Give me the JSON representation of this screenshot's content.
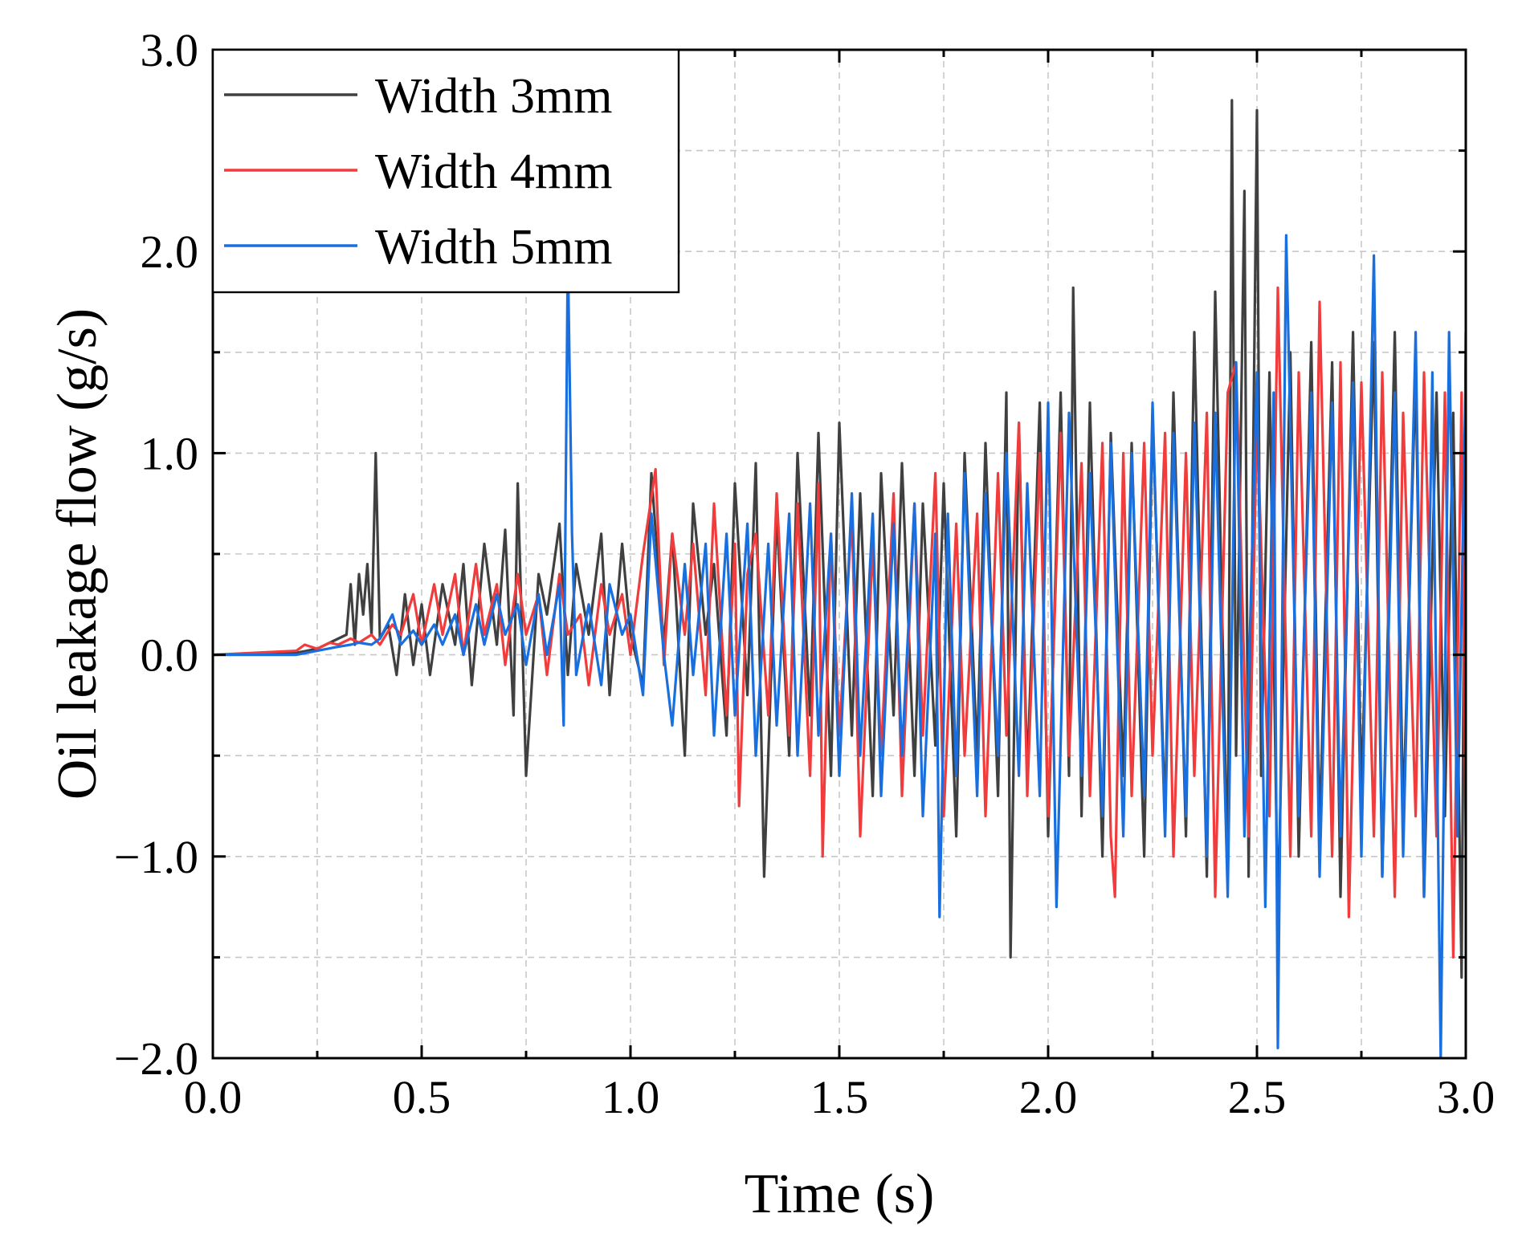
{
  "chart_data": {
    "type": "line",
    "xlabel": "Time (s)",
    "ylabel": "Oil leakage flow (g/s)",
    "xlim": [
      0,
      3.0
    ],
    "ylim": [
      -2.0,
      3.0
    ],
    "x_ticks": [
      "0.0",
      "0.5",
      "1.0",
      "1.5",
      "2.0",
      "2.5",
      "3.0"
    ],
    "y_ticks": [
      "−2.0",
      "−1.0",
      "0.0",
      "1.0",
      "2.0",
      "3.0"
    ],
    "x_tick_values": [
      0,
      0.5,
      1.0,
      1.5,
      2.0,
      2.5,
      3.0
    ],
    "y_tick_values": [
      -2.0,
      -1.0,
      0.0,
      1.0,
      2.0,
      3.0
    ],
    "grid": true,
    "legend_position": "top-left",
    "series": [
      {
        "name": "Width 3mm",
        "color": "#404040",
        "x": [
          0,
          0.2,
          0.25,
          0.3,
          0.32,
          0.33,
          0.34,
          0.35,
          0.36,
          0.37,
          0.38,
          0.39,
          0.4,
          0.42,
          0.44,
          0.46,
          0.48,
          0.5,
          0.52,
          0.55,
          0.58,
          0.6,
          0.62,
          0.65,
          0.68,
          0.7,
          0.72,
          0.73,
          0.75,
          0.78,
          0.8,
          0.83,
          0.85,
          0.87,
          0.9,
          0.93,
          0.95,
          0.98,
          1.0,
          1.03,
          1.05,
          1.08,
          1.1,
          1.13,
          1.15,
          1.18,
          1.2,
          1.23,
          1.25,
          1.28,
          1.3,
          1.32,
          1.35,
          1.38,
          1.4,
          1.43,
          1.45,
          1.48,
          1.5,
          1.53,
          1.55,
          1.58,
          1.6,
          1.63,
          1.65,
          1.68,
          1.7,
          1.73,
          1.75,
          1.78,
          1.8,
          1.83,
          1.85,
          1.88,
          1.9,
          1.91,
          1.93,
          1.95,
          1.98,
          2.0,
          2.03,
          2.05,
          2.06,
          2.08,
          2.1,
          2.13,
          2.15,
          2.18,
          2.2,
          2.23,
          2.25,
          2.28,
          2.3,
          2.33,
          2.35,
          2.38,
          2.4,
          2.43,
          2.44,
          2.45,
          2.47,
          2.48,
          2.5,
          2.51,
          2.53,
          2.55,
          2.58,
          2.6,
          2.63,
          2.65,
          2.68,
          2.7,
          2.73,
          2.75,
          2.78,
          2.8,
          2.83,
          2.85,
          2.88,
          2.9,
          2.93,
          2.95,
          2.97,
          2.99,
          3.0
        ],
        "values": [
          0,
          0.01,
          0.03,
          0.08,
          0.1,
          0.35,
          0.05,
          0.4,
          0.2,
          0.45,
          0.1,
          1.0,
          0.08,
          0.15,
          -0.1,
          0.3,
          -0.05,
          0.25,
          -0.1,
          0.35,
          0.05,
          0.45,
          -0.15,
          0.55,
          0.05,
          0.62,
          -0.3,
          0.85,
          -0.6,
          0.4,
          0.2,
          0.65,
          -0.1,
          0.45,
          0.1,
          0.6,
          -0.2,
          0.55,
          0.1,
          -0.15,
          0.9,
          0.05,
          0.6,
          -0.5,
          0.75,
          0.1,
          0.45,
          -0.4,
          0.85,
          -0.2,
          0.95,
          -1.1,
          0.7,
          -0.5,
          1.0,
          -0.3,
          1.1,
          -0.6,
          1.15,
          -0.4,
          0.8,
          -0.7,
          0.9,
          -0.3,
          0.95,
          -0.6,
          0.75,
          -0.45,
          0.85,
          -0.9,
          1.0,
          -0.5,
          1.05,
          -0.7,
          1.3,
          -1.5,
          1.15,
          -0.6,
          1.25,
          -0.9,
          1.3,
          -0.6,
          1.82,
          -0.8,
          1.25,
          -1.0,
          1.1,
          -0.6,
          1.05,
          -1.0,
          1.2,
          -0.8,
          1.3,
          -0.9,
          1.6,
          -1.1,
          1.8,
          -1.1,
          2.75,
          -0.5,
          2.3,
          -1.1,
          2.7,
          -0.6,
          1.4,
          -1.3,
          1.5,
          -1.0,
          1.55,
          -0.9,
          1.45,
          -1.2,
          1.6,
          -0.7,
          1.55,
          -1.1,
          1.6,
          -0.8,
          1.4,
          -1.2,
          1.3,
          -0.8,
          1.2,
          -1.6,
          1.6
        ]
      },
      {
        "name": "Width 4mm",
        "color": "#f03c3c",
        "x": [
          0,
          0.2,
          0.22,
          0.25,
          0.28,
          0.3,
          0.33,
          0.35,
          0.38,
          0.4,
          0.43,
          0.45,
          0.48,
          0.5,
          0.53,
          0.55,
          0.58,
          0.6,
          0.63,
          0.65,
          0.68,
          0.7,
          0.73,
          0.75,
          0.78,
          0.8,
          0.83,
          0.85,
          0.88,
          0.9,
          0.93,
          0.95,
          0.98,
          1.0,
          1.03,
          1.06,
          1.08,
          1.1,
          1.13,
          1.15,
          1.18,
          1.2,
          1.23,
          1.25,
          1.26,
          1.28,
          1.3,
          1.33,
          1.35,
          1.38,
          1.4,
          1.43,
          1.45,
          1.46,
          1.48,
          1.5,
          1.53,
          1.55,
          1.58,
          1.6,
          1.63,
          1.65,
          1.68,
          1.7,
          1.73,
          1.75,
          1.78,
          1.8,
          1.83,
          1.85,
          1.88,
          1.9,
          1.93,
          1.95,
          1.98,
          2.0,
          2.03,
          2.05,
          2.08,
          2.1,
          2.13,
          2.15,
          2.16,
          2.18,
          2.2,
          2.23,
          2.25,
          2.28,
          2.3,
          2.33,
          2.35,
          2.38,
          2.4,
          2.43,
          2.45,
          2.48,
          2.5,
          2.53,
          2.55,
          2.58,
          2.6,
          2.63,
          2.65,
          2.68,
          2.7,
          2.72,
          2.75,
          2.78,
          2.8,
          2.83,
          2.85,
          2.88,
          2.9,
          2.93,
          2.95,
          2.97,
          2.99,
          3.0
        ],
        "values": [
          0,
          0.02,
          0.05,
          0.03,
          0.06,
          0.05,
          0.08,
          0.06,
          0.1,
          0.05,
          0.15,
          0.1,
          0.3,
          0.05,
          0.35,
          0.1,
          0.4,
          0.0,
          0.45,
          0.1,
          0.35,
          -0.05,
          0.4,
          0.1,
          0.3,
          -0.1,
          0.4,
          0.1,
          0.2,
          -0.15,
          0.35,
          0.1,
          0.3,
          0.0,
          0.5,
          0.92,
          -0.05,
          0.6,
          0.1,
          0.55,
          -0.2,
          0.75,
          -0.3,
          0.55,
          -0.75,
          0.4,
          0.6,
          -0.3,
          0.8,
          -0.4,
          0.75,
          -0.6,
          0.85,
          -1.0,
          0.6,
          -0.4,
          0.7,
          -0.9,
          0.55,
          -0.5,
          0.8,
          -0.7,
          0.75,
          -0.4,
          0.9,
          -0.8,
          0.65,
          -0.5,
          0.7,
          -0.8,
          0.9,
          -0.4,
          1.15,
          -0.7,
          1.0,
          -0.8,
          1.1,
          -0.5,
          0.95,
          -0.7,
          1.05,
          -0.9,
          -1.2,
          1.0,
          -0.7,
          1.05,
          -0.5,
          1.1,
          -1.0,
          1.0,
          -0.6,
          1.2,
          -1.2,
          1.3,
          1.45,
          -0.9,
          1.2,
          -0.8,
          1.82,
          -1.0,
          1.4,
          -0.9,
          1.75,
          -1.0,
          1.45,
          -1.3,
          1.35,
          -0.9,
          1.4,
          -1.2,
          1.2,
          -0.8,
          1.4,
          -0.9,
          1.3,
          -1.5,
          1.3,
          -0.9
        ]
      },
      {
        "name": "Width 5mm",
        "color": "#1a6fdf",
        "x": [
          0,
          0.2,
          0.25,
          0.3,
          0.33,
          0.35,
          0.38,
          0.4,
          0.43,
          0.45,
          0.48,
          0.5,
          0.53,
          0.55,
          0.58,
          0.6,
          0.63,
          0.65,
          0.68,
          0.7,
          0.73,
          0.75,
          0.78,
          0.8,
          0.83,
          0.84,
          0.85,
          0.86,
          0.87,
          0.9,
          0.93,
          0.95,
          0.98,
          1.0,
          1.03,
          1.05,
          1.08,
          1.1,
          1.13,
          1.15,
          1.18,
          1.2,
          1.23,
          1.25,
          1.28,
          1.3,
          1.33,
          1.35,
          1.38,
          1.4,
          1.43,
          1.45,
          1.48,
          1.5,
          1.53,
          1.55,
          1.58,
          1.6,
          1.63,
          1.65,
          1.68,
          1.7,
          1.73,
          1.74,
          1.76,
          1.78,
          1.8,
          1.83,
          1.85,
          1.88,
          1.9,
          1.93,
          1.95,
          1.98,
          2.0,
          2.02,
          2.05,
          2.08,
          2.1,
          2.13,
          2.15,
          2.18,
          2.2,
          2.23,
          2.25,
          2.28,
          2.3,
          2.33,
          2.35,
          2.38,
          2.4,
          2.43,
          2.45,
          2.47,
          2.5,
          2.52,
          2.54,
          2.55,
          2.57,
          2.6,
          2.63,
          2.65,
          2.68,
          2.7,
          2.73,
          2.75,
          2.78,
          2.8,
          2.83,
          2.85,
          2.88,
          2.9,
          2.92,
          2.94,
          2.96,
          2.98,
          3.0
        ],
        "values": [
          0,
          0.0,
          0.02,
          0.04,
          0.05,
          0.06,
          0.05,
          0.08,
          0.2,
          0.05,
          0.12,
          0.05,
          0.15,
          0.05,
          0.2,
          0.0,
          0.25,
          0.05,
          0.3,
          0.1,
          0.25,
          -0.05,
          0.3,
          0.0,
          0.35,
          -0.35,
          2.0,
          0.6,
          -0.1,
          0.25,
          -0.15,
          0.35,
          0.1,
          0.2,
          -0.2,
          0.7,
          0.0,
          -0.35,
          0.45,
          -0.1,
          0.55,
          -0.4,
          0.6,
          -0.3,
          0.65,
          -0.5,
          0.55,
          -0.35,
          0.7,
          -0.5,
          0.75,
          -0.4,
          0.6,
          -0.6,
          0.8,
          -0.5,
          0.7,
          -0.7,
          0.65,
          -0.5,
          0.75,
          -0.8,
          0.6,
          -1.3,
          0.7,
          -0.6,
          0.9,
          -0.7,
          0.8,
          -0.5,
          1.0,
          -0.6,
          0.85,
          -0.7,
          1.25,
          -1.25,
          1.2,
          -0.6,
          0.9,
          -0.8,
          1.05,
          -0.9,
          1.0,
          -0.7,
          1.25,
          -0.9,
          1.1,
          -0.8,
          1.15,
          -1.0,
          1.2,
          -1.2,
          1.45,
          -0.9,
          1.4,
          -1.25,
          1.3,
          -1.95,
          2.08,
          -0.8,
          1.3,
          -1.1,
          1.25,
          -0.9,
          1.35,
          -1.0,
          1.98,
          -1.1,
          1.3,
          -1.0,
          1.6,
          -1.2,
          1.4,
          -2.0,
          1.6,
          -0.9,
          1.4
        ]
      }
    ]
  }
}
